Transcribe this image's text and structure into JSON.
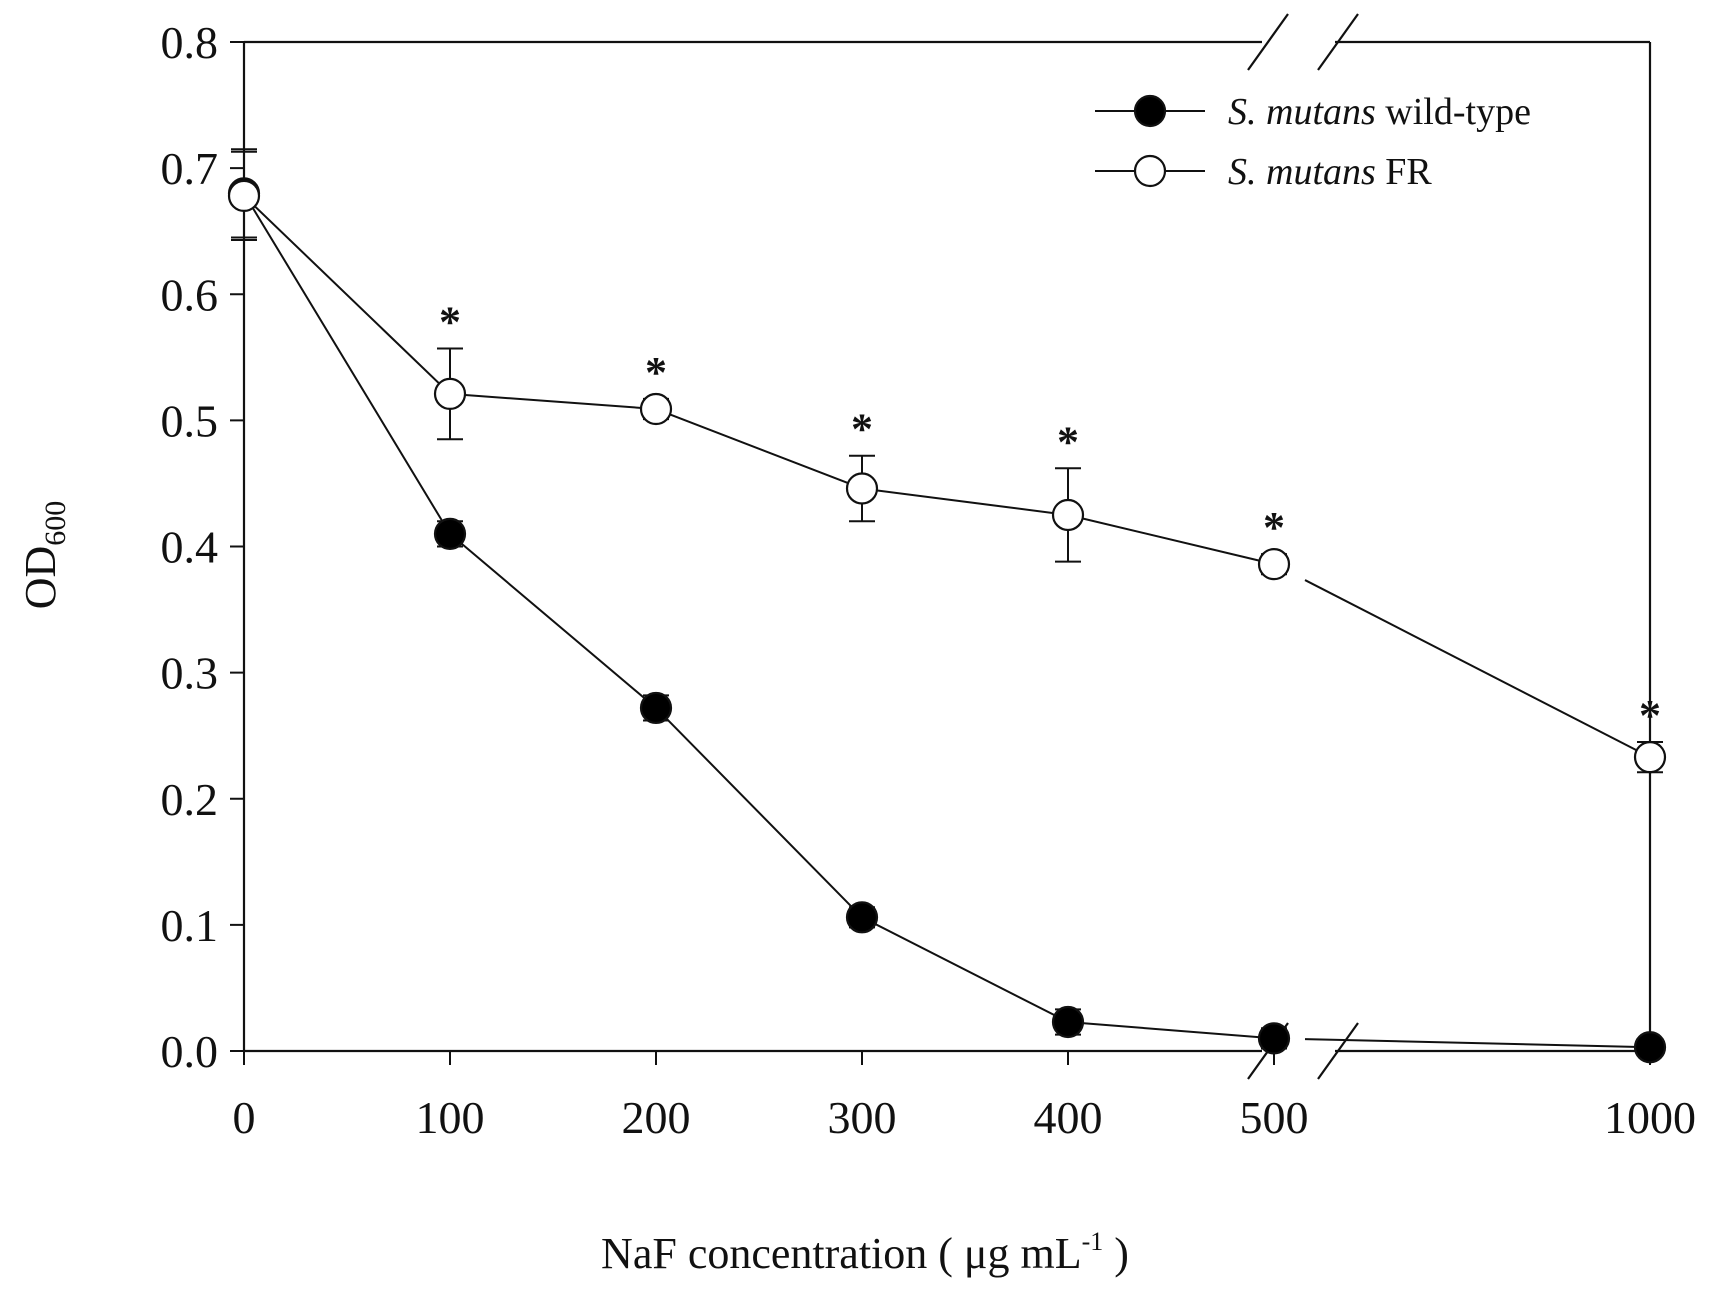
{
  "chart_data": {
    "type": "line",
    "title": "",
    "xlabel": "NaF concentration ( μg mL⁻¹ )",
    "xlabel_parts": {
      "main": "NaF concentration (",
      "mu": "μg",
      "unit": "mL",
      "sup": "-1",
      "close": ")"
    },
    "ylabel": "OD600",
    "ylabel_parts": {
      "main": "OD",
      "sub": "600"
    },
    "ylim": [
      0,
      0.8
    ],
    "yticks": [
      "0.0",
      "0.1",
      "0.2",
      "0.3",
      "0.4",
      "0.5",
      "0.6",
      "0.7",
      "0.8"
    ],
    "xticks": [
      "0",
      "100",
      "200",
      "300",
      "400",
      "500",
      "1000"
    ],
    "x_break": {
      "between": [
        500,
        1000
      ]
    },
    "legend_position": "top-right",
    "significance_marker": "*",
    "series": [
      {
        "name": "S. mutans wild-type",
        "name_italic": "S. mutans",
        "name_rest": "wild-type",
        "marker": "filled-circle",
        "x": [
          0,
          100,
          200,
          300,
          400,
          500,
          1000
        ],
        "values": [
          0.68,
          0.41,
          0.272,
          0.106,
          0.023,
          0.01,
          0.003
        ],
        "error": [
          0.035,
          0.01,
          0.01,
          0.008,
          0.01,
          0.008,
          0.004
        ]
      },
      {
        "name": "S. mutans FR",
        "name_italic": "S. mutans",
        "name_rest": "FR",
        "marker": "open-circle",
        "x": [
          0,
          100,
          200,
          300,
          400,
          500,
          1000
        ],
        "values": [
          0.678,
          0.521,
          0.509,
          0.446,
          0.425,
          0.386,
          0.233
        ],
        "error": [
          0.035,
          0.036,
          0.008,
          0.026,
          0.037,
          0.008,
          0.012
        ],
        "significant": [
          false,
          true,
          true,
          true,
          true,
          true,
          true
        ]
      }
    ]
  },
  "colors": {
    "line": "#111111",
    "open_fill": "#ffffff",
    "filled": "#000000"
  }
}
